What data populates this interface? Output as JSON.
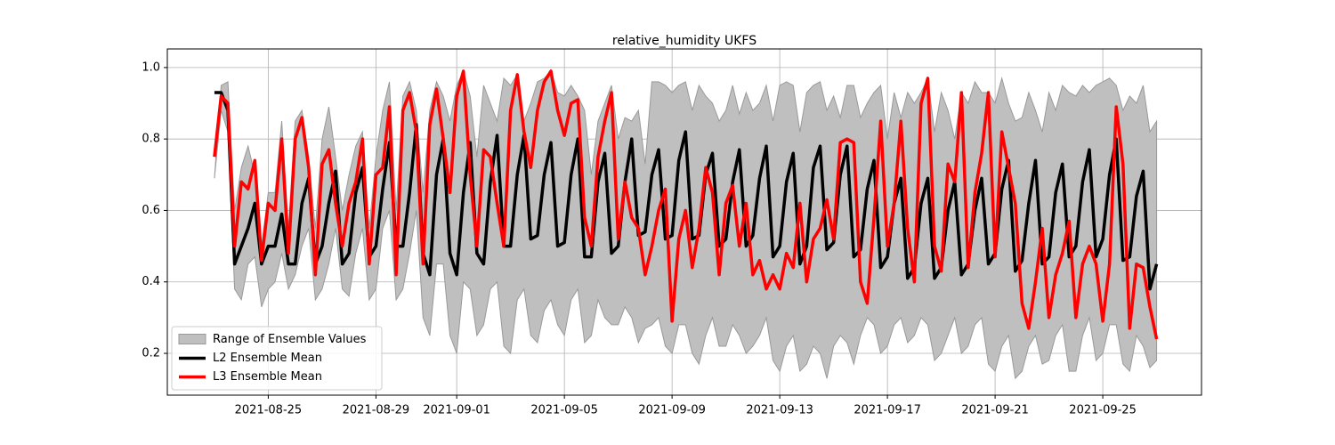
{
  "chart_data": {
    "type": "line",
    "title": "relative_humidity UKFS",
    "x": [
      "2021-08-23 00:00",
      "2021-08-23 06:00",
      "2021-08-23 12:00",
      "2021-08-23 18:00",
      "2021-08-24 00:00",
      "2021-08-24 06:00",
      "2021-08-24 12:00",
      "2021-08-24 18:00",
      "2021-08-25 00:00",
      "2021-08-25 06:00",
      "2021-08-25 12:00",
      "2021-08-25 18:00",
      "2021-08-26 00:00",
      "2021-08-26 06:00",
      "2021-08-26 12:00",
      "2021-08-26 18:00",
      "2021-08-27 00:00",
      "2021-08-27 06:00",
      "2021-08-27 12:00",
      "2021-08-27 18:00",
      "2021-08-28 00:00",
      "2021-08-28 06:00",
      "2021-08-28 12:00",
      "2021-08-28 18:00",
      "2021-08-29 00:00",
      "2021-08-29 06:00",
      "2021-08-29 12:00",
      "2021-08-29 18:00",
      "2021-08-30 00:00",
      "2021-08-30 06:00",
      "2021-08-30 12:00",
      "2021-08-30 18:00",
      "2021-08-31 00:00",
      "2021-08-31 06:00",
      "2021-08-31 12:00",
      "2021-08-31 18:00",
      "2021-09-01 00:00",
      "2021-09-01 06:00",
      "2021-09-01 12:00",
      "2021-09-01 18:00",
      "2021-09-02 00:00",
      "2021-09-02 06:00",
      "2021-09-02 12:00",
      "2021-09-02 18:00",
      "2021-09-03 00:00",
      "2021-09-03 06:00",
      "2021-09-03 12:00",
      "2021-09-03 18:00",
      "2021-09-04 00:00",
      "2021-09-04 06:00",
      "2021-09-04 12:00",
      "2021-09-04 18:00",
      "2021-09-05 00:00",
      "2021-09-05 06:00",
      "2021-09-05 12:00",
      "2021-09-05 18:00",
      "2021-09-06 00:00",
      "2021-09-06 06:00",
      "2021-09-06 12:00",
      "2021-09-06 18:00",
      "2021-09-07 00:00",
      "2021-09-07 06:00",
      "2021-09-07 12:00",
      "2021-09-07 18:00",
      "2021-09-08 00:00",
      "2021-09-08 06:00",
      "2021-09-08 12:00",
      "2021-09-08 18:00",
      "2021-09-09 00:00",
      "2021-09-09 06:00",
      "2021-09-09 12:00",
      "2021-09-09 18:00",
      "2021-09-10 00:00",
      "2021-09-10 06:00",
      "2021-09-10 12:00",
      "2021-09-10 18:00",
      "2021-09-11 00:00",
      "2021-09-11 06:00",
      "2021-09-11 12:00",
      "2021-09-11 18:00",
      "2021-09-12 00:00",
      "2021-09-12 06:00",
      "2021-09-12 12:00",
      "2021-09-12 18:00",
      "2021-09-13 00:00",
      "2021-09-13 06:00",
      "2021-09-13 12:00",
      "2021-09-13 18:00",
      "2021-09-14 00:00",
      "2021-09-14 06:00",
      "2021-09-14 12:00",
      "2021-09-14 18:00",
      "2021-09-15 00:00",
      "2021-09-15 06:00",
      "2021-09-15 12:00",
      "2021-09-15 18:00",
      "2021-09-16 00:00",
      "2021-09-16 06:00",
      "2021-09-16 12:00",
      "2021-09-16 18:00",
      "2021-09-17 00:00",
      "2021-09-17 06:00",
      "2021-09-17 12:00",
      "2021-09-17 18:00",
      "2021-09-18 00:00",
      "2021-09-18 06:00",
      "2021-09-18 12:00",
      "2021-09-18 18:00",
      "2021-09-19 00:00",
      "2021-09-19 06:00",
      "2021-09-19 12:00",
      "2021-09-19 18:00",
      "2021-09-20 00:00",
      "2021-09-20 06:00",
      "2021-09-20 12:00",
      "2021-09-20 18:00",
      "2021-09-21 00:00",
      "2021-09-21 06:00",
      "2021-09-21 12:00",
      "2021-09-21 18:00",
      "2021-09-22 00:00",
      "2021-09-22 06:00",
      "2021-09-22 12:00",
      "2021-09-22 18:00",
      "2021-09-23 00:00",
      "2021-09-23 06:00",
      "2021-09-23 12:00",
      "2021-09-23 18:00",
      "2021-09-24 00:00",
      "2021-09-24 06:00",
      "2021-09-24 12:00",
      "2021-09-24 18:00",
      "2021-09-25 00:00",
      "2021-09-25 06:00",
      "2021-09-25 12:00",
      "2021-09-25 18:00",
      "2021-09-26 00:00",
      "2021-09-26 06:00",
      "2021-09-26 12:00",
      "2021-09-26 18:00",
      "2021-09-27 00:00"
    ],
    "band": {
      "name": "Range of Ensemble Values",
      "color": "#bfbfbf",
      "edge": "#999999",
      "upper": [
        0.69,
        0.95,
        0.96,
        0.6,
        0.72,
        0.78,
        0.7,
        0.5,
        0.65,
        0.65,
        0.85,
        0.55,
        0.85,
        0.88,
        0.75,
        0.55,
        0.8,
        0.89,
        0.75,
        0.6,
        0.7,
        0.78,
        0.82,
        0.55,
        0.75,
        0.88,
        0.96,
        0.6,
        0.92,
        0.96,
        0.88,
        0.65,
        0.88,
        0.96,
        0.92,
        0.85,
        0.95,
        0.99,
        0.92,
        0.75,
        0.95,
        0.9,
        0.85,
        0.97,
        0.95,
        0.98,
        0.85,
        0.9,
        0.96,
        0.97,
        0.99,
        0.93,
        0.92,
        0.95,
        0.92,
        0.88,
        0.7,
        0.85,
        0.9,
        0.95,
        0.8,
        0.86,
        0.85,
        0.88,
        0.73,
        0.96,
        0.96,
        0.95,
        0.93,
        0.95,
        0.96,
        0.88,
        0.95,
        0.92,
        0.9,
        0.85,
        0.88,
        0.95,
        0.87,
        0.93,
        0.88,
        0.9,
        0.95,
        0.85,
        0.95,
        0.96,
        0.95,
        0.82,
        0.93,
        0.95,
        0.96,
        0.88,
        0.92,
        0.86,
        0.95,
        0.95,
        0.86,
        0.9,
        0.93,
        0.95,
        0.8,
        0.93,
        0.86,
        0.93,
        0.9,
        0.93,
        0.97,
        0.82,
        0.93,
        0.88,
        0.8,
        0.93,
        0.9,
        0.96,
        0.93,
        0.93,
        0.9,
        0.97,
        0.9,
        0.85,
        0.86,
        0.93,
        0.88,
        0.82,
        0.93,
        0.88,
        0.95,
        0.93,
        0.92,
        0.95,
        0.93,
        0.95,
        0.96,
        0.97,
        0.95,
        0.88,
        0.92,
        0.9,
        0.95,
        0.82,
        0.85
      ],
      "lower": [
        0.69,
        0.88,
        0.82,
        0.38,
        0.35,
        0.45,
        0.47,
        0.33,
        0.38,
        0.4,
        0.48,
        0.38,
        0.42,
        0.5,
        0.55,
        0.35,
        0.38,
        0.45,
        0.55,
        0.38,
        0.36,
        0.48,
        0.55,
        0.35,
        0.38,
        0.55,
        0.6,
        0.35,
        0.38,
        0.48,
        0.6,
        0.3,
        0.25,
        0.45,
        0.45,
        0.25,
        0.2,
        0.4,
        0.38,
        0.25,
        0.28,
        0.38,
        0.4,
        0.22,
        0.2,
        0.35,
        0.38,
        0.25,
        0.23,
        0.32,
        0.35,
        0.28,
        0.25,
        0.35,
        0.38,
        0.23,
        0.25,
        0.35,
        0.3,
        0.28,
        0.28,
        0.33,
        0.3,
        0.23,
        0.27,
        0.28,
        0.3,
        0.22,
        0.2,
        0.28,
        0.28,
        0.2,
        0.17,
        0.25,
        0.3,
        0.22,
        0.22,
        0.28,
        0.25,
        0.2,
        0.22,
        0.25,
        0.3,
        0.18,
        0.15,
        0.22,
        0.25,
        0.15,
        0.17,
        0.22,
        0.2,
        0.13,
        0.22,
        0.25,
        0.23,
        0.17,
        0.25,
        0.3,
        0.28,
        0.2,
        0.22,
        0.28,
        0.3,
        0.23,
        0.25,
        0.3,
        0.28,
        0.18,
        0.2,
        0.25,
        0.3,
        0.2,
        0.22,
        0.28,
        0.3,
        0.17,
        0.15,
        0.22,
        0.25,
        0.13,
        0.15,
        0.22,
        0.25,
        0.17,
        0.18,
        0.25,
        0.28,
        0.15,
        0.15,
        0.25,
        0.3,
        0.18,
        0.2,
        0.28,
        0.28,
        0.17,
        0.15,
        0.25,
        0.22,
        0.16,
        0.18
      ]
    },
    "series": [
      {
        "name": "L2 Ensemble Mean",
        "color": "#000000",
        "values": [
          0.93,
          0.93,
          0.88,
          0.45,
          0.5,
          0.55,
          0.62,
          0.45,
          0.5,
          0.5,
          0.59,
          0.45,
          0.45,
          0.62,
          0.69,
          0.45,
          0.5,
          0.62,
          0.71,
          0.45,
          0.48,
          0.65,
          0.72,
          0.47,
          0.5,
          0.66,
          0.79,
          0.5,
          0.5,
          0.65,
          0.84,
          0.48,
          0.42,
          0.7,
          0.8,
          0.48,
          0.42,
          0.65,
          0.79,
          0.48,
          0.45,
          0.68,
          0.81,
          0.5,
          0.5,
          0.7,
          0.81,
          0.52,
          0.53,
          0.7,
          0.79,
          0.5,
          0.51,
          0.7,
          0.8,
          0.47,
          0.47,
          0.68,
          0.76,
          0.48,
          0.5,
          0.68,
          0.8,
          0.53,
          0.54,
          0.7,
          0.77,
          0.52,
          0.53,
          0.74,
          0.82,
          0.52,
          0.53,
          0.7,
          0.76,
          0.5,
          0.52,
          0.68,
          0.77,
          0.5,
          0.53,
          0.69,
          0.78,
          0.47,
          0.5,
          0.68,
          0.76,
          0.45,
          0.5,
          0.72,
          0.78,
          0.49,
          0.51,
          0.7,
          0.78,
          0.47,
          0.49,
          0.66,
          0.74,
          0.44,
          0.47,
          0.62,
          0.69,
          0.41,
          0.44,
          0.62,
          0.69,
          0.41,
          0.44,
          0.6,
          0.68,
          0.42,
          0.45,
          0.6,
          0.69,
          0.45,
          0.48,
          0.66,
          0.74,
          0.43,
          0.46,
          0.62,
          0.74,
          0.45,
          0.47,
          0.65,
          0.73,
          0.47,
          0.5,
          0.68,
          0.77,
          0.47,
          0.52,
          0.7,
          0.8,
          0.46,
          0.47,
          0.64,
          0.71,
          0.38,
          0.45
        ]
      },
      {
        "name": "L3 Ensemble Mean",
        "color": "#ff0000",
        "values": [
          0.75,
          0.92,
          0.9,
          0.5,
          0.68,
          0.66,
          0.74,
          0.46,
          0.62,
          0.6,
          0.8,
          0.48,
          0.8,
          0.86,
          0.72,
          0.42,
          0.73,
          0.77,
          0.62,
          0.5,
          0.62,
          0.68,
          0.8,
          0.45,
          0.7,
          0.72,
          0.89,
          0.42,
          0.88,
          0.93,
          0.82,
          0.45,
          0.84,
          0.94,
          0.8,
          0.65,
          0.92,
          0.99,
          0.7,
          0.5,
          0.77,
          0.75,
          0.62,
          0.5,
          0.88,
          0.98,
          0.82,
          0.72,
          0.88,
          0.96,
          0.99,
          0.88,
          0.81,
          0.9,
          0.91,
          0.58,
          0.5,
          0.75,
          0.85,
          0.93,
          0.52,
          0.68,
          0.58,
          0.55,
          0.42,
          0.5,
          0.6,
          0.66,
          0.29,
          0.52,
          0.6,
          0.44,
          0.55,
          0.72,
          0.65,
          0.42,
          0.62,
          0.67,
          0.5,
          0.62,
          0.42,
          0.46,
          0.38,
          0.42,
          0.38,
          0.48,
          0.44,
          0.62,
          0.4,
          0.52,
          0.55,
          0.63,
          0.52,
          0.79,
          0.8,
          0.79,
          0.4,
          0.34,
          0.58,
          0.85,
          0.5,
          0.62,
          0.85,
          0.55,
          0.4,
          0.9,
          0.97,
          0.5,
          0.43,
          0.73,
          0.68,
          0.93,
          0.44,
          0.65,
          0.76,
          0.93,
          0.47,
          0.82,
          0.72,
          0.62,
          0.34,
          0.27,
          0.4,
          0.55,
          0.3,
          0.42,
          0.48,
          0.57,
          0.3,
          0.45,
          0.5,
          0.45,
          0.29,
          0.45,
          0.89,
          0.73,
          0.27,
          0.45,
          0.44,
          0.33,
          0.24
        ]
      }
    ],
    "xlim": [
      "2021-08-21 06:00",
      "2021-09-28 16:00"
    ],
    "xticks": [
      "2021-08-25",
      "2021-08-29",
      "2021-09-01",
      "2021-09-05",
      "2021-09-09",
      "2021-09-13",
      "2021-09-17",
      "2021-09-21",
      "2021-09-25"
    ],
    "ylim": [
      0.083,
      1.052
    ],
    "yticks": [
      0.2,
      0.4,
      0.6,
      0.8,
      {
        "value": 1.0,
        "label": "1.0"
      }
    ],
    "grid": true,
    "legend": "lower left"
  }
}
